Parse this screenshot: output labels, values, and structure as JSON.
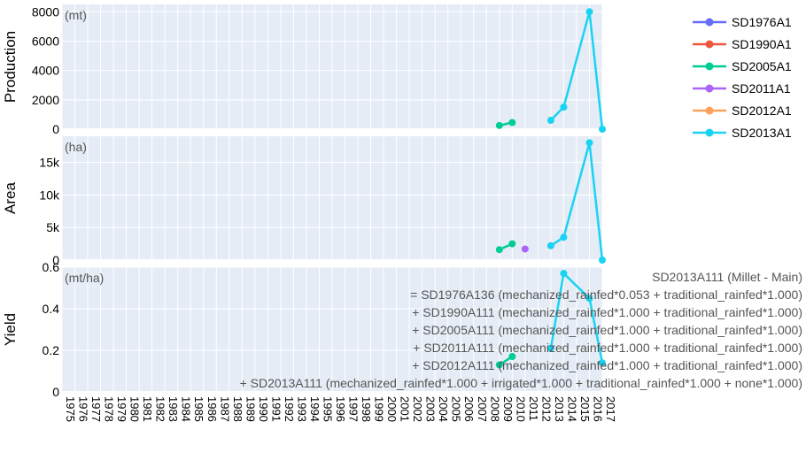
{
  "chart_data": {
    "type": "line",
    "x": [
      1975,
      1976,
      1977,
      1978,
      1979,
      1980,
      1981,
      1982,
      1983,
      1984,
      1985,
      1986,
      1987,
      1988,
      1989,
      1990,
      1991,
      1992,
      1993,
      1994,
      1995,
      1996,
      1997,
      1998,
      1999,
      2000,
      2001,
      2002,
      2003,
      2004,
      2005,
      2006,
      2007,
      2008,
      2009,
      2010,
      2011,
      2012,
      2013,
      2014,
      2015,
      2016,
      2017
    ],
    "xlim": [
      1975,
      2017
    ],
    "panels": [
      {
        "ylabel": "Production",
        "unit": "(mt)",
        "ylim": [
          0,
          8500
        ],
        "ticks": [
          0,
          2000,
          4000,
          6000,
          8000
        ],
        "tick_labels": [
          "0",
          "2000",
          "4000",
          "6000",
          "8000"
        ],
        "series": [
          {
            "name": "SD2005A1",
            "points": [
              [
                2009,
                250
              ],
              [
                2010,
                450
              ]
            ]
          },
          {
            "name": "SD2013A1",
            "points": [
              [
                2013,
                600
              ],
              [
                2014,
                1500
              ],
              [
                2016,
                8000
              ],
              [
                2017,
                0
              ]
            ]
          }
        ]
      },
      {
        "ylabel": "Area",
        "unit": "(ha)",
        "ylim": [
          0,
          19000
        ],
        "ticks": [
          0,
          5000,
          10000,
          15000
        ],
        "tick_labels": [
          "0",
          "5k",
          "10k",
          "15k"
        ],
        "series": [
          {
            "name": "SD2005A1",
            "points": [
              [
                2009,
                1600
              ],
              [
                2010,
                2500
              ]
            ]
          },
          {
            "name": "SD2011A1",
            "points": [
              [
                2011,
                1700
              ]
            ]
          },
          {
            "name": "SD2013A1",
            "points": [
              [
                2013,
                2200
              ],
              [
                2014,
                3500
              ],
              [
                2016,
                18000
              ],
              [
                2017,
                0
              ]
            ]
          }
        ]
      },
      {
        "ylabel": "Yield",
        "unit": "(mt/ha)",
        "ylim": [
          0,
          0.6
        ],
        "ticks": [
          0,
          0.2,
          0.4,
          0.6
        ],
        "tick_labels": [
          "0",
          "0.2",
          "0.4",
          "0.6"
        ],
        "series": [
          {
            "name": "SD2005A1",
            "points": [
              [
                2009,
                0.13
              ],
              [
                2010,
                0.17
              ]
            ]
          },
          {
            "name": "SD2013A1",
            "points": [
              [
                2013,
                0.21
              ],
              [
                2014,
                0.57
              ],
              [
                2016,
                0.45
              ],
              [
                2017,
                0.14
              ]
            ]
          }
        ]
      }
    ],
    "legend": {
      "placement": "top-right",
      "items": [
        {
          "name": "SD1976A1",
          "color": "#636efa"
        },
        {
          "name": "SD1990A1",
          "color": "#ef553b"
        },
        {
          "name": "SD2005A1",
          "color": "#00cc96"
        },
        {
          "name": "SD2011A1",
          "color": "#ab63fa"
        },
        {
          "name": "SD2012A1",
          "color": "#ffa15a"
        },
        {
          "name": "SD2013A1",
          "color": "#19d3f3"
        }
      ]
    },
    "annotation_lines": [
      "SD2013A111 (Millet - Main)",
      "= SD1976A136 (mechanized_rainfed*0.053 + traditional_rainfed*1.000)",
      "+ SD1990A111 (mechanized_rainfed*1.000 + traditional_rainfed*1.000)",
      "+ SD2005A111 (mechanized_rainfed*1.000 + traditional_rainfed*1.000)",
      "+ SD2011A111 (mechanized_rainfed*1.000 + traditional_rainfed*1.000)",
      "+ SD2012A111 (mechanized_rainfed*1.000 + traditional_rainfed*1.000)",
      "+ SD2013A111 (mechanized_rainfed*1.000 + irrigated*1.000 + traditional_rainfed*1.000 + none*1.000)"
    ],
    "grid": true,
    "plot_background": "#e5ecf6"
  }
}
